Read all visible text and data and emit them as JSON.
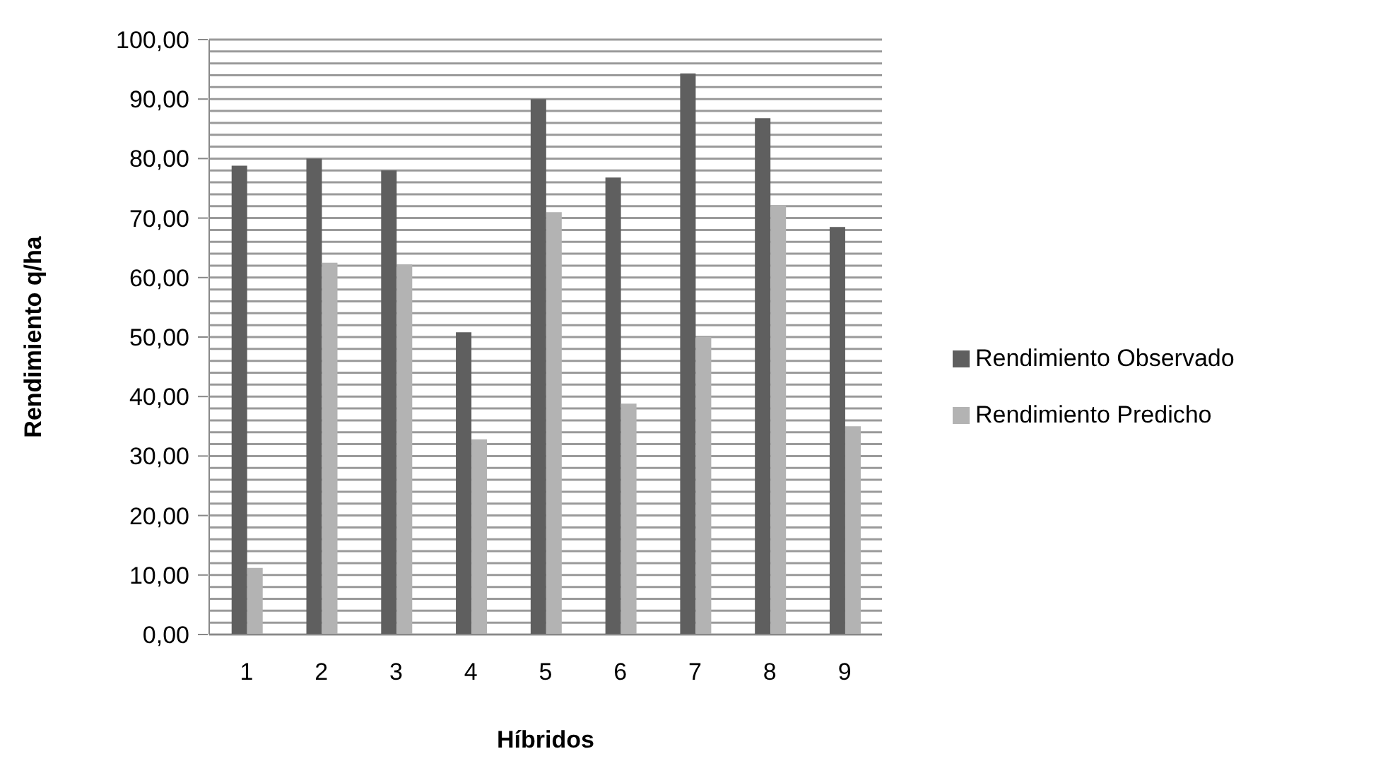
{
  "chart_data": {
    "type": "bar",
    "xlabel": "Híbridos",
    "ylabel": "Rendimiento q/ha",
    "categories": [
      "1",
      "2",
      "3",
      "4",
      "5",
      "6",
      "7",
      "8",
      "9"
    ],
    "series": [
      {
        "name": "Rendimiento Observado",
        "color": "#5f5f5f",
        "values": [
          78.8,
          80,
          78,
          50.8,
          90,
          76.8,
          94.3,
          86.8,
          68.5
        ]
      },
      {
        "name": "Rendimiento Predicho",
        "color": "#b3b3b3",
        "values": [
          11.2,
          62.5,
          62.2,
          32.8,
          71,
          38.8,
          50,
          72.2,
          35
        ]
      }
    ],
    "ylim": [
      0,
      100
    ],
    "yticks": [
      {
        "value": 0,
        "label": "0,00"
      },
      {
        "value": 2,
        "label": null
      },
      {
        "value": 4,
        "label": null
      },
      {
        "value": 6,
        "label": null
      },
      {
        "value": 8,
        "label": null
      },
      {
        "value": 10,
        "label": "10,00"
      },
      {
        "value": 12,
        "label": null
      },
      {
        "value": 14,
        "label": null
      },
      {
        "value": 16,
        "label": null
      },
      {
        "value": 18,
        "label": null
      },
      {
        "value": 20,
        "label": "20,00"
      },
      {
        "value": 22,
        "label": null
      },
      {
        "value": 24,
        "label": null
      },
      {
        "value": 26,
        "label": null
      },
      {
        "value": 28,
        "label": null
      },
      {
        "value": 30,
        "label": "30,00"
      },
      {
        "value": 32,
        "label": null
      },
      {
        "value": 34,
        "label": null
      },
      {
        "value": 36,
        "label": null
      },
      {
        "value": 38,
        "label": null
      },
      {
        "value": 40,
        "label": "40,00"
      },
      {
        "value": 42,
        "label": null
      },
      {
        "value": 44,
        "label": null
      },
      {
        "value": 46,
        "label": null
      },
      {
        "value": 48,
        "label": null
      },
      {
        "value": 50,
        "label": "50,00"
      },
      {
        "value": 52,
        "label": null
      },
      {
        "value": 54,
        "label": null
      },
      {
        "value": 56,
        "label": null
      },
      {
        "value": 58,
        "label": null
      },
      {
        "value": 60,
        "label": "60,00"
      },
      {
        "value": 62,
        "label": null
      },
      {
        "value": 64,
        "label": null
      },
      {
        "value": 66,
        "label": null
      },
      {
        "value": 68,
        "label": null
      },
      {
        "value": 70,
        "label": "70,00"
      },
      {
        "value": 72,
        "label": null
      },
      {
        "value": 74,
        "label": null
      },
      {
        "value": 76,
        "label": null
      },
      {
        "value": 78,
        "label": null
      },
      {
        "value": 80,
        "label": "80,00"
      },
      {
        "value": 82,
        "label": null
      },
      {
        "value": 84,
        "label": null
      },
      {
        "value": 86,
        "label": null
      },
      {
        "value": 88,
        "label": null
      },
      {
        "value": 90,
        "label": "90,00"
      },
      {
        "value": 92,
        "label": null
      },
      {
        "value": 94,
        "label": null
      },
      {
        "value": 96,
        "label": null
      },
      {
        "value": 98,
        "label": null
      },
      {
        "value": 100,
        "label": "100,00"
      }
    ],
    "grid": "y",
    "legend": "right"
  }
}
